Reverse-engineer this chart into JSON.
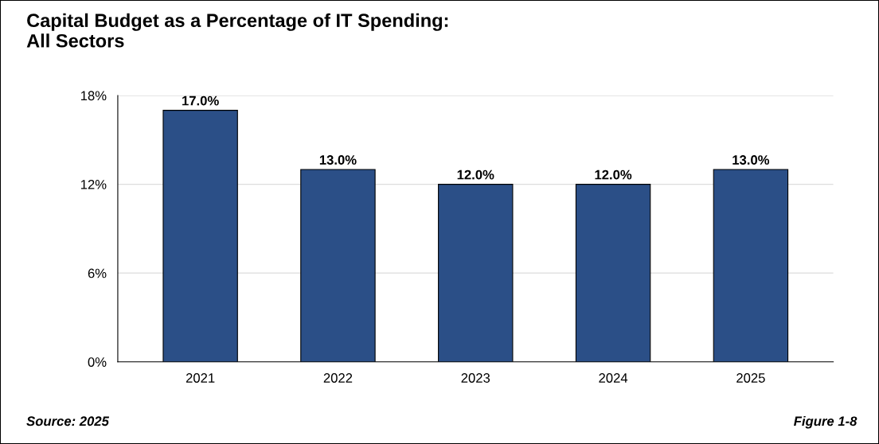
{
  "chart_data": {
    "type": "bar",
    "title": "Capital Budget as a Percentage of IT Spending:\nAll Sectors",
    "categories": [
      "2021",
      "2022",
      "2023",
      "2024",
      "2025"
    ],
    "values": [
      17,
      13,
      12,
      12,
      13
    ],
    "value_labels": [
      "17.0%",
      "13.0%",
      "12.0%",
      "12.0%",
      "13.0%"
    ],
    "color": "#2b4f87",
    "ylim": [
      0,
      18
    ],
    "yticks": [
      {
        "value": 0,
        "label": "0%"
      },
      {
        "value": 6,
        "label": "6%"
      },
      {
        "value": 12,
        "label": "12%"
      },
      {
        "value": 18,
        "label": "18%"
      }
    ],
    "grid": "y",
    "annotations": [
      "Source: 2025",
      "Figure 1-8"
    ]
  }
}
